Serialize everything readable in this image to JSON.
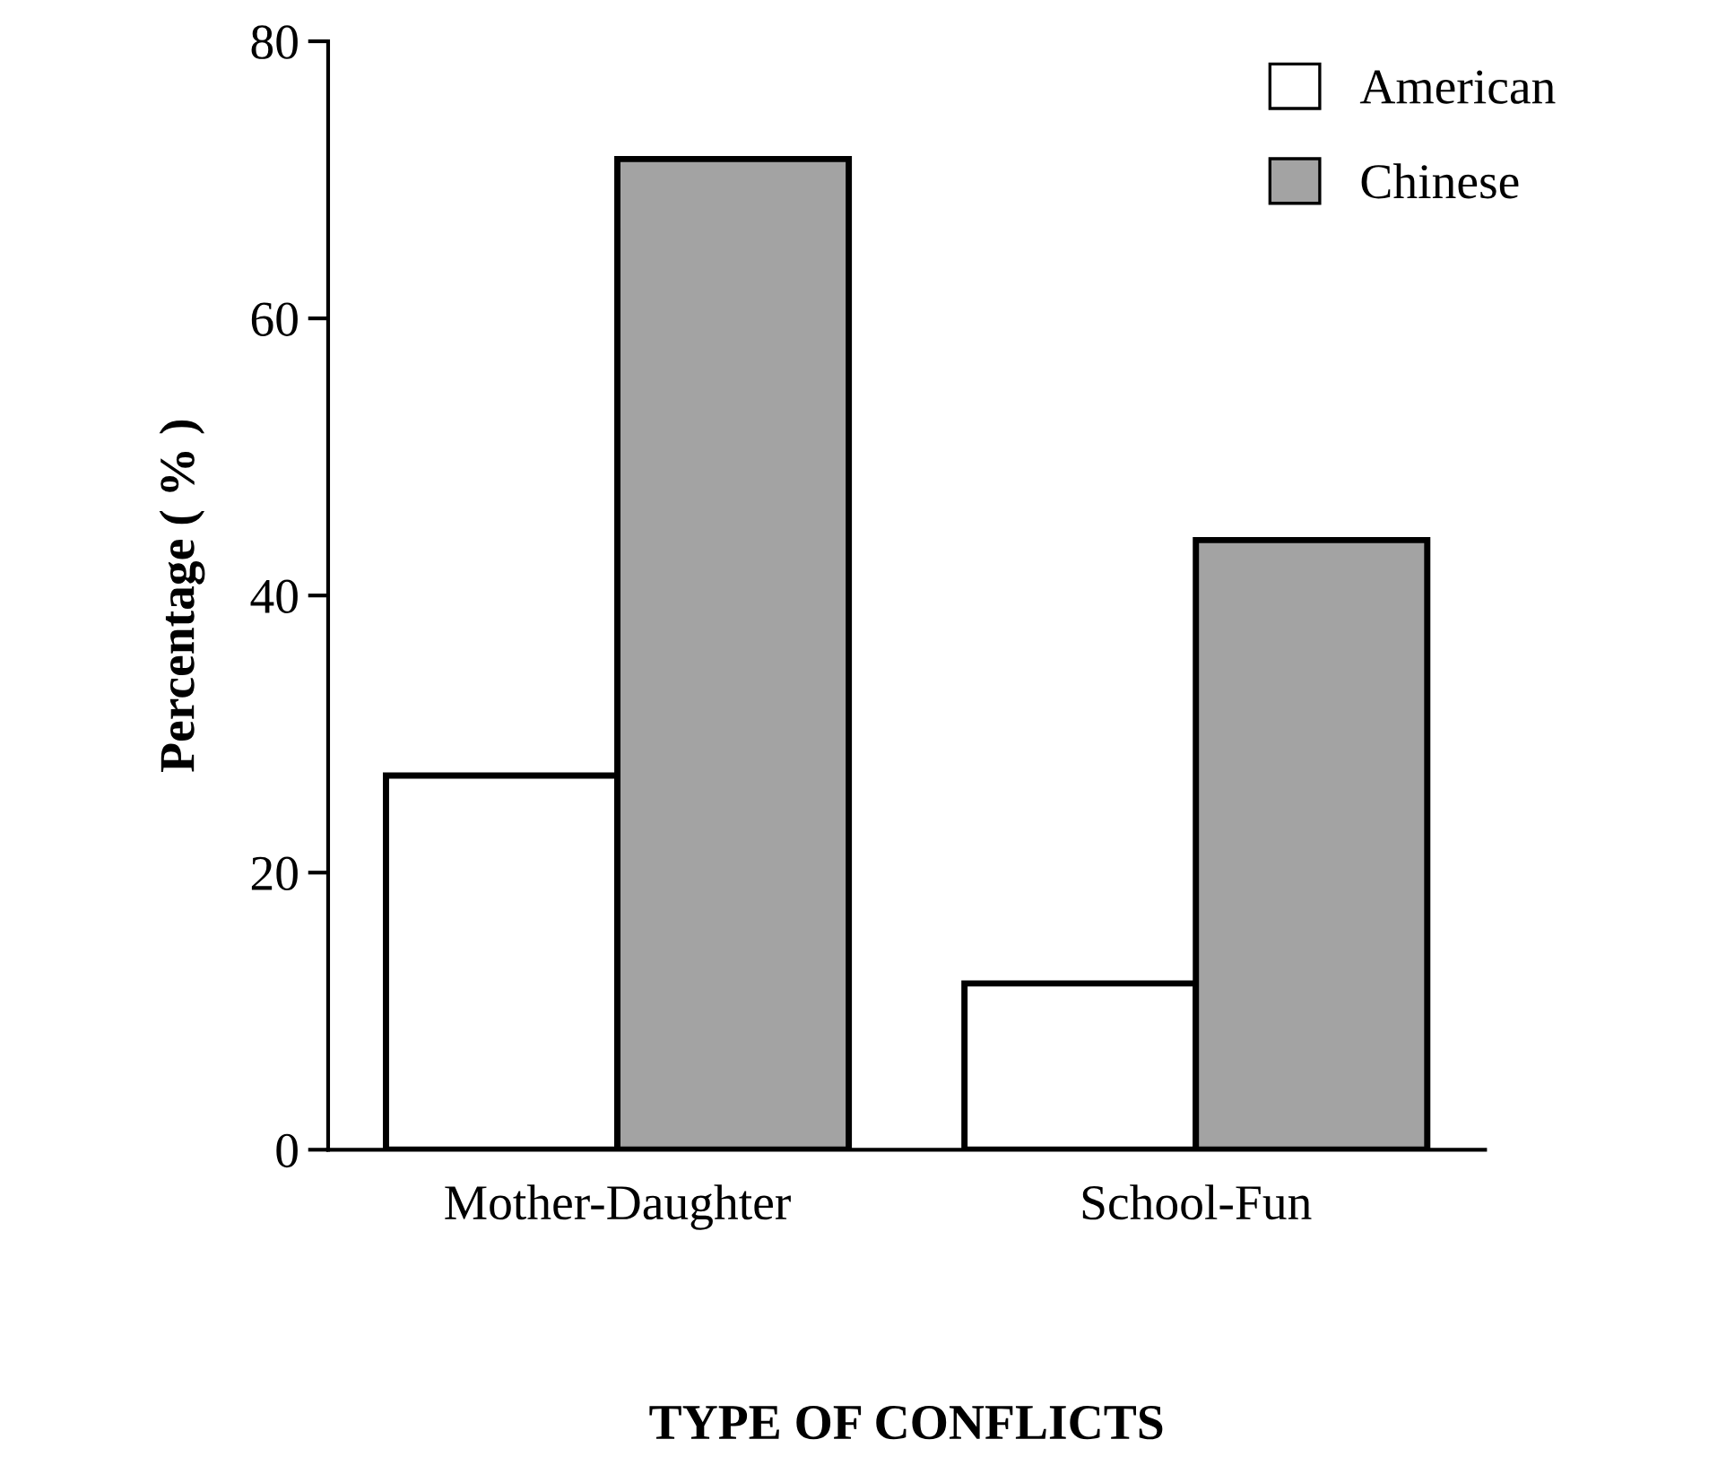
{
  "chart_data": {
    "type": "bar",
    "xlabel": "TYPE OF CONFLICTS",
    "ylabel": "Percentage ( % )",
    "categories": [
      "Mother-Daughter",
      "School-Fun"
    ],
    "series": [
      {
        "name": "American",
        "color": "#ffffff",
        "values": [
          27,
          12
        ]
      },
      {
        "name": "Chinese",
        "color": "#a3a3a3",
        "values": [
          71.5,
          44
        ]
      }
    ],
    "ylim": [
      0,
      80
    ],
    "yticks": [
      0,
      20,
      40,
      60,
      80
    ],
    "grid": false,
    "legend": "top right"
  }
}
